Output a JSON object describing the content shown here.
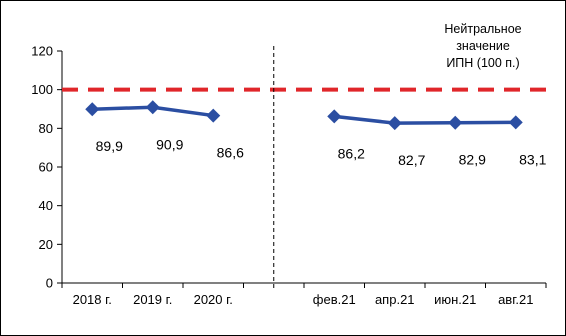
{
  "chart_data": {
    "type": "line",
    "categories": [
      "2018 г.",
      "2019 г.",
      "2020 г.",
      "",
      "фев.21",
      "апр.21",
      "июн.21",
      "авг.21"
    ],
    "series": [
      {
        "segments": [
          {
            "x": [
              "2018 г.",
              "2019 г.",
              "2020 г."
            ],
            "values": [
              89.9,
              90.9,
              86.6
            ],
            "labels": [
              "89,9",
              "90,9",
              "86,6"
            ]
          },
          {
            "x": [
              "фев.21",
              "апр.21",
              "июн.21",
              "авг.21"
            ],
            "values": [
              86.2,
              82.7,
              82.9,
              83.1
            ],
            "labels": [
              "86,2",
              "82,7",
              "82,9",
              "83,1"
            ]
          }
        ],
        "color": "#2b4ea2"
      }
    ],
    "reference_line": {
      "value": 100,
      "color": "#e0262a",
      "style": "dashed"
    },
    "separator": {
      "between": [
        "2020 г.",
        "фев.21"
      ],
      "style": "dashed"
    },
    "annotation": {
      "lines": [
        "Нейтральное",
        "значение",
        "ИПН (100 п.)"
      ],
      "placement": "top-right"
    },
    "ylim": [
      0,
      120
    ],
    "yticks": [
      0,
      20,
      40,
      60,
      80,
      100,
      120
    ],
    "grid": false,
    "legend": "none"
  }
}
